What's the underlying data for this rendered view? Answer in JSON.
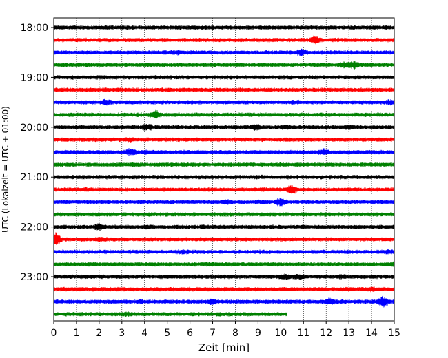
{
  "chart_data": {
    "type": "line",
    "chart_kind": "seismogram helicorder (one trace per 15-minute interval)",
    "xlabel": "Zeit  [min]",
    "ylabel": "UTC (Lokalzeit = UTC + 01:00)",
    "xlim": [
      0,
      15
    ],
    "x_ticks": [
      "0",
      "1",
      "2",
      "3",
      "4",
      "5",
      "6",
      "7",
      "8",
      "9",
      "10",
      "11",
      "12",
      "13",
      "14",
      "15"
    ],
    "y_tick_labels": [
      "18:00",
      "19:00",
      "20:00",
      "21:00",
      "22:00",
      "23:00"
    ],
    "grid": "vertical dotted lines at each minute",
    "trace_colors": [
      "#000000",
      "#ff0000",
      "#0000ff",
      "#008000"
    ],
    "series": [
      {
        "start": "18:00",
        "end_min": 15,
        "events": []
      },
      {
        "start": "18:15",
        "end_min": 15,
        "events": [
          [
            11.5,
            2.2
          ]
        ]
      },
      {
        "start": "18:30",
        "end_min": 15,
        "events": [
          [
            10.9,
            2.0
          ],
          [
            5.4,
            1.4
          ]
        ]
      },
      {
        "start": "18:45",
        "end_min": 15,
        "events": [
          [
            13.2,
            2.2
          ],
          [
            12.8,
            1.6
          ]
        ]
      },
      {
        "start": "19:00",
        "end_min": 15,
        "events": []
      },
      {
        "start": "19:15",
        "end_min": 15,
        "events": []
      },
      {
        "start": "19:30",
        "end_min": 15,
        "events": [
          [
            2.3,
            1.8
          ],
          [
            10.6,
            1.4
          ],
          [
            14.8,
            1.5
          ]
        ]
      },
      {
        "start": "19:45",
        "end_min": 15,
        "events": [
          [
            4.5,
            2.2
          ]
        ]
      },
      {
        "start": "20:00",
        "end_min": 15,
        "events": [
          [
            4.1,
            2.0
          ],
          [
            8.9,
            1.8
          ],
          [
            13.0,
            1.5
          ],
          [
            10.2,
            1.3
          ]
        ]
      },
      {
        "start": "20:15",
        "end_min": 15,
        "events": [
          [
            3.3,
            1.3
          ]
        ]
      },
      {
        "start": "20:30",
        "end_min": 15,
        "events": [
          [
            3.4,
            2.0
          ],
          [
            11.9,
            1.8
          ],
          [
            4.1,
            1.3
          ]
        ]
      },
      {
        "start": "20:45",
        "end_min": 15,
        "events": [
          [
            3.6,
            1.2
          ],
          [
            10.1,
            1.2
          ]
        ]
      },
      {
        "start": "21:00",
        "end_min": 15,
        "events": [
          [
            4.7,
            1.2
          ]
        ]
      },
      {
        "start": "21:15",
        "end_min": 15,
        "events": [
          [
            10.5,
            2.6
          ],
          [
            1.4,
            1.3
          ],
          [
            9.1,
            1.2
          ]
        ]
      },
      {
        "start": "21:30",
        "end_min": 15,
        "events": [
          [
            10.0,
            2.6
          ],
          [
            7.6,
            1.6
          ],
          [
            9.1,
            1.3
          ]
        ]
      },
      {
        "start": "21:45",
        "end_min": 15,
        "events": []
      },
      {
        "start": "22:00",
        "end_min": 15,
        "events": [
          [
            2.0,
            1.9
          ],
          [
            4.2,
            1.3
          ]
        ]
      },
      {
        "start": "22:15",
        "end_min": 15,
        "events": [
          [
            0.1,
            3.2
          ],
          [
            2.1,
            1.6
          ],
          [
            10.0,
            1.2
          ]
        ]
      },
      {
        "start": "22:30",
        "end_min": 15,
        "events": [
          [
            5.7,
            1.4
          ],
          [
            14.7,
            1.3
          ]
        ]
      },
      {
        "start": "22:45",
        "end_min": 15,
        "events": [
          [
            6.8,
            1.3
          ],
          [
            14.9,
            1.3
          ]
        ]
      },
      {
        "start": "23:00",
        "end_min": 15,
        "events": [
          [
            10.2,
            1.8
          ],
          [
            10.8,
            1.6
          ],
          [
            12.7,
            1.5
          ]
        ]
      },
      {
        "start": "23:15",
        "end_min": 15,
        "events": [
          [
            12.9,
            1.3
          ],
          [
            14.0,
            1.4
          ]
        ]
      },
      {
        "start": "23:30",
        "end_min": 15,
        "events": [
          [
            14.5,
            3.0
          ],
          [
            12.2,
            2.0
          ],
          [
            7.0,
            1.8
          ],
          [
            3.8,
            1.3
          ]
        ]
      },
      {
        "start": "23:45",
        "end_min": 10.25,
        "events": [
          [
            3.2,
            1.4
          ]
        ]
      }
    ]
  }
}
